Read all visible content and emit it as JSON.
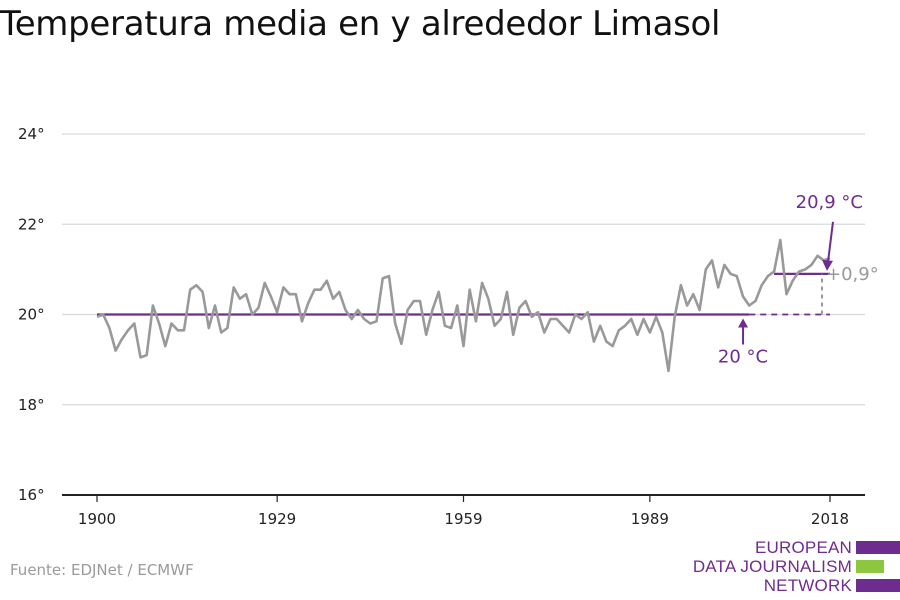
{
  "chart_data": {
    "type": "line",
    "title": "Temperatura media en y alrededor Limasol",
    "xlim": [
      1900,
      2018
    ],
    "ylim": [
      16,
      24
    ],
    "y_ticks": [
      16,
      18,
      20,
      22,
      24
    ],
    "y_tick_labels": [
      "16°",
      "18°",
      "20°",
      "22°",
      "24°"
    ],
    "x_ticks": [
      1900,
      1929,
      1959,
      1989,
      2018
    ],
    "x_tick_labels": [
      "1900",
      "1929",
      "1959",
      "1989",
      "2018"
    ],
    "grid": true,
    "series": [
      {
        "x": [
          1900,
          1901,
          1902,
          1903,
          1904,
          1905,
          1906,
          1907,
          1908,
          1909,
          1910,
          1911,
          1912,
          1913,
          1914,
          1915,
          1916,
          1917,
          1918,
          1919,
          1920,
          1921,
          1922,
          1923,
          1924,
          1925,
          1926,
          1927,
          1928,
          1929,
          1930,
          1931,
          1932,
          1933,
          1934,
          1935,
          1936,
          1937,
          1938,
          1939,
          1940,
          1941,
          1942,
          1943,
          1944,
          1945,
          1946,
          1947,
          1948,
          1949,
          1950,
          1951,
          1952,
          1953,
          1954,
          1955,
          1956,
          1957,
          1958,
          1959,
          1960,
          1961,
          1962,
          1963,
          1964,
          1965,
          1966,
          1967,
          1968,
          1969,
          1970,
          1971,
          1972,
          1973,
          1974,
          1975,
          1976,
          1977,
          1978,
          1979,
          1980,
          1981,
          1982,
          1983,
          1984,
          1985,
          1986,
          1987,
          1988,
          1989,
          1990,
          1991,
          1992,
          1993,
          1994,
          1995,
          1996,
          1997,
          1998,
          1999,
          2000,
          2001,
          2002,
          2003,
          2004,
          2005,
          2006,
          2007,
          2008,
          2009,
          2010,
          2011,
          2012,
          2013,
          2014,
          2015,
          2016,
          2017,
          2018
        ],
        "values": [
          19.95,
          20.0,
          19.7,
          19.2,
          19.45,
          19.65,
          19.8,
          19.05,
          19.1,
          20.2,
          19.8,
          19.3,
          19.8,
          19.65,
          19.65,
          20.55,
          20.65,
          20.5,
          19.7,
          20.2,
          19.6,
          19.7,
          20.6,
          20.35,
          20.45,
          20.0,
          20.15,
          20.7,
          20.4,
          20.05,
          20.6,
          20.45,
          20.45,
          19.85,
          20.25,
          20.55,
          20.55,
          20.75,
          20.35,
          20.5,
          20.1,
          19.9,
          20.1,
          19.9,
          19.8,
          19.85,
          20.8,
          20.85,
          19.8,
          19.35,
          20.1,
          20.3,
          20.3,
          19.55,
          20.1,
          20.5,
          19.75,
          19.7,
          20.2,
          19.3,
          20.55,
          19.85,
          20.7,
          20.35,
          19.75,
          19.9,
          20.5,
          19.55,
          20.15,
          20.3,
          19.95,
          20.05,
          19.6,
          19.9,
          19.9,
          19.75,
          19.6,
          20.0,
          19.9,
          20.05,
          19.4,
          19.75,
          19.4,
          19.3,
          19.65,
          19.75,
          19.9,
          19.55,
          19.9,
          19.6,
          19.95,
          19.6,
          18.75,
          19.95,
          20.65,
          20.2,
          20.45,
          20.1,
          21.0,
          21.2,
          20.6,
          21.1,
          20.9,
          20.85,
          20.4,
          20.2,
          20.3,
          20.65,
          20.85,
          20.95,
          21.65,
          20.45,
          20.75,
          20.95,
          21.0,
          21.1,
          21.3,
          21.2,
          21.25
        ]
      }
    ],
    "baseline": {
      "value": 20.0,
      "label": "20 °C"
    },
    "recent": {
      "value": 20.9,
      "label": "20,9 °C"
    },
    "difference_label": "+0,9°",
    "colors": {
      "line": "#999999",
      "reference": "#6f2c8f",
      "grid": "#d9d9d9",
      "axis": "#222222",
      "diff": "#999999"
    }
  },
  "source": "Fuente: EDJNet / ECMWF",
  "logo": {
    "lines": [
      "EUROPEAN",
      "DATA JOURNALISM",
      "NETWORK"
    ],
    "colors": [
      "#6f2c8f",
      "#8dc63f",
      "#6f2c8f"
    ]
  }
}
